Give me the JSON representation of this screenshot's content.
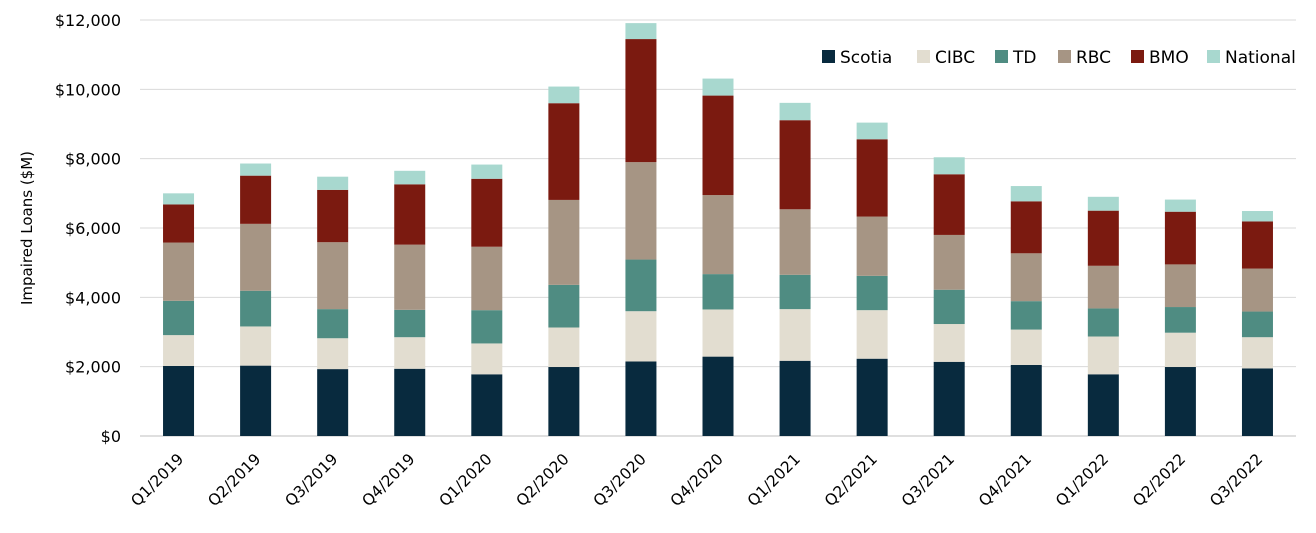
{
  "chart_data": {
    "type": "bar",
    "stacked": true,
    "title": "",
    "xlabel": "",
    "ylabel": "Impaired Loans ($M)",
    "ylim": [
      0,
      12000
    ],
    "ytick_values": [
      0,
      2000,
      4000,
      6000,
      8000,
      10000,
      12000
    ],
    "ytick_labels": [
      "$0",
      "$2,000",
      "$4,000",
      "$6,000",
      "$8,000",
      "$10,000",
      "$12,000"
    ],
    "grid": "horizontal",
    "legend_position": "top-right",
    "categories": [
      "Q1/2019",
      "Q2/2019",
      "Q3/2019",
      "Q4/2019",
      "Q1/2020",
      "Q2/2020",
      "Q3/2020",
      "Q4/2020",
      "Q1/2021",
      "Q2/2021",
      "Q3/2021",
      "Q4/2021",
      "Q1/2022",
      "Q2/2022",
      "Q3/2022"
    ],
    "series": [
      {
        "name": "Scotia",
        "color": "#082A3E",
        "values": [
          2020,
          2030,
          1930,
          1940,
          1780,
          1990,
          2150,
          2290,
          2170,
          2230,
          2140,
          2050,
          1780,
          1990,
          1950
        ]
      },
      {
        "name": "CIBC",
        "color": "#E2DDD0",
        "values": [
          890,
          1130,
          890,
          910,
          890,
          1140,
          1450,
          1360,
          1490,
          1400,
          1090,
          1020,
          1090,
          990,
          900
        ]
      },
      {
        "name": "TD",
        "color": "#4F8C82",
        "values": [
          990,
          1030,
          840,
          790,
          960,
          1230,
          1490,
          1020,
          990,
          990,
          990,
          820,
          810,
          740,
          740
        ]
      },
      {
        "name": "RBC",
        "color": "#A69584",
        "values": [
          1680,
          1930,
          1930,
          1880,
          1830,
          2450,
          2810,
          2280,
          1890,
          1710,
          1580,
          1380,
          1230,
          1230,
          1240
        ]
      },
      {
        "name": "BMO",
        "color": "#7B1A10",
        "values": [
          1100,
          1390,
          1510,
          1740,
          1960,
          2790,
          3550,
          2870,
          2570,
          2230,
          1750,
          1500,
          1590,
          1520,
          1360
        ]
      },
      {
        "name": "National",
        "color": "#A8D8CF",
        "values": [
          320,
          350,
          380,
          390,
          410,
          480,
          460,
          490,
          500,
          480,
          490,
          440,
          400,
          350,
          300
        ]
      }
    ]
  }
}
